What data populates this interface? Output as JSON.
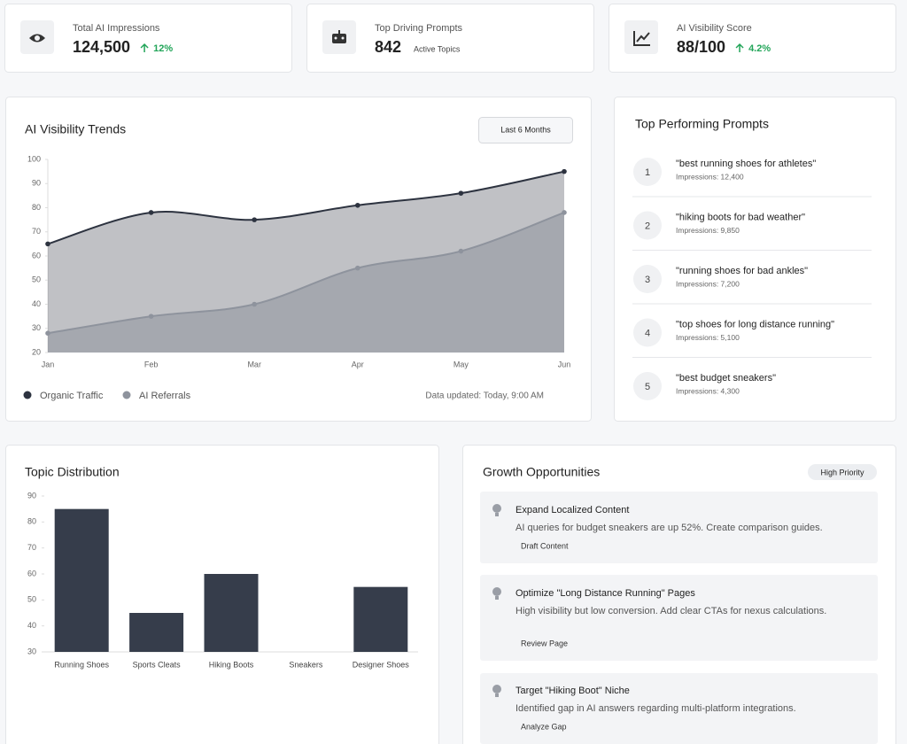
{
  "kpis": [
    {
      "label": "Total AI Impressions",
      "value": "124,500",
      "change": "12%"
    },
    {
      "label": "Top Driving Prompts",
      "value": "842",
      "note": "Active Topics"
    },
    {
      "label": "AI Visibility Score",
      "value": "88/100",
      "change": "4.2%"
    }
  ],
  "chart_data": [
    {
      "type": "area",
      "title": "AI Visibility Trends",
      "filter": "Last 6 Months",
      "categories": [
        "Jan",
        "Feb",
        "Mar",
        "Apr",
        "May",
        "Jun"
      ],
      "series": [
        {
          "name": "Organic Traffic",
          "color": "#2d3340",
          "values": [
            65,
            78,
            75,
            81,
            86,
            95
          ]
        },
        {
          "name": "AI Referrals",
          "color": "#8e939d",
          "values": [
            28,
            35,
            40,
            55,
            62,
            78
          ]
        }
      ],
      "ylim": [
        20,
        100
      ],
      "yticks": [
        20,
        30,
        40,
        50,
        60,
        70,
        80,
        90,
        100
      ],
      "legend": "bottom-left",
      "note": "Data updated: Today, 9:00 AM"
    },
    {
      "type": "bar",
      "title": "Topic Distribution",
      "categories": [
        "Running Shoes",
        "Sports Cleats",
        "Hiking Boots",
        "Sneakers",
        "Designer Shoes"
      ],
      "values": [
        85,
        45,
        60,
        30,
        55
      ],
      "color": "#363d4b",
      "ylim": [
        30,
        90
      ],
      "yticks": [
        30,
        40,
        50,
        60,
        70,
        80,
        90
      ]
    }
  ],
  "top_prompts": {
    "title": "Top Performing Prompts",
    "items": [
      {
        "rank": "1",
        "prompt": "\"best running shoes for athletes\"",
        "impressions": "Impressions: 12,400"
      },
      {
        "rank": "2",
        "prompt": "\"hiking boots for bad weather\"",
        "impressions": "Impressions: 9,850"
      },
      {
        "rank": "3",
        "prompt": "\"running shoes for bad ankles\"",
        "impressions": "Impressions: 7,200"
      },
      {
        "rank": "4",
        "prompt": "\"top shoes for long distance running\"",
        "impressions": "Impressions: 5,100"
      },
      {
        "rank": "5",
        "prompt": "\"best budget sneakers\"",
        "impressions": "Impressions: 4,300"
      }
    ]
  },
  "growth": {
    "title": "Growth Opportunities",
    "badge": "High Priority",
    "items": [
      {
        "title": "Expand Localized Content",
        "description": "AI queries for budget sneakers are up 52%. Create comparison guides.",
        "action": "Draft Content"
      },
      {
        "title": "Optimize \"Long Distance Running\" Pages",
        "description": "High visibility but low conversion. Add clear CTAs for nexus calculations.",
        "action": "Review Page"
      },
      {
        "title": "Target \"Hiking Boot\" Niche",
        "description": "Identified gap in AI answers regarding multi-platform integrations.",
        "action": "Analyze Gap"
      }
    ]
  }
}
